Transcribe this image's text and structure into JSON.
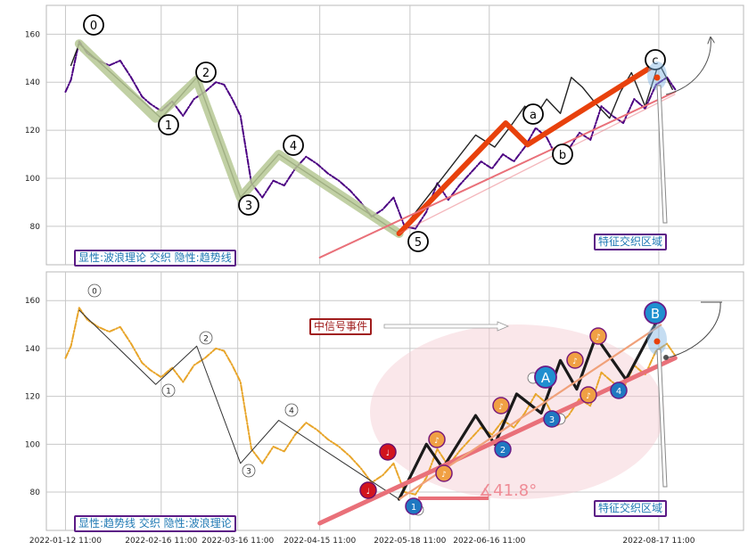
{
  "chart_data": [
    {
      "type": "line",
      "panel": "top",
      "ylim": [
        64,
        172
      ],
      "yticks": [
        80,
        100,
        120,
        140,
        160
      ],
      "grid": true,
      "series": [
        {
          "style": "dash-dot",
          "color": "#4b0082",
          "x": [
            "2022-01-12",
            "2022-01-14",
            "2022-01-17",
            "2022-01-20",
            "2022-01-24",
            "2022-01-28",
            "2022-02-01",
            "2022-02-05",
            "2022-02-09",
            "2022-02-12",
            "2022-02-16",
            "2022-02-20",
            "2022-02-24",
            "2022-02-28",
            "2022-03-04",
            "2022-03-08",
            "2022-03-11",
            "2022-03-14",
            "2022-03-17",
            "2022-03-21",
            "2022-03-25",
            "2022-03-29",
            "2022-04-02",
            "2022-04-06",
            "2022-04-10",
            "2022-04-14",
            "2022-04-18",
            "2022-04-22",
            "2022-04-26",
            "2022-04-30",
            "2022-05-04",
            "2022-05-08",
            "2022-05-12",
            "2022-05-16",
            "2022-05-20",
            "2022-05-24",
            "2022-05-28",
            "2022-06-01",
            "2022-06-05",
            "2022-06-09",
            "2022-06-13",
            "2022-06-17",
            "2022-06-21",
            "2022-06-25",
            "2022-06-29",
            "2022-07-03",
            "2022-07-07",
            "2022-07-11",
            "2022-07-15",
            "2022-07-19",
            "2022-07-23",
            "2022-07-27",
            "2022-07-31",
            "2022-08-04",
            "2022-08-08",
            "2022-08-12",
            "2022-08-16",
            "2022-08-20",
            "2022-08-23"
          ],
          "y": [
            136,
            141,
            157,
            152,
            149,
            147,
            149,
            142,
            134,
            131,
            128,
            132,
            126,
            133,
            136,
            140,
            139,
            133,
            126,
            98,
            92,
            99,
            97,
            104,
            109,
            106,
            102,
            99,
            95,
            90,
            84,
            87,
            92,
            80,
            79,
            86,
            98,
            91,
            97,
            102,
            107,
            104,
            110,
            107,
            113,
            121,
            117,
            108,
            112,
            119,
            116,
            130,
            126,
            123,
            133,
            129,
            139,
            142,
            137
          ]
        },
        {
          "style": "solid",
          "color": "#222222",
          "x": [
            "2022-01-14",
            "2022-01-17",
            "2022-02-16",
            "2022-03-01",
            "2022-03-17",
            "2022-03-31",
            "2022-05-14",
            "2022-06-11",
            "2022-06-18",
            "2022-06-24",
            "2022-06-29",
            "2022-07-03",
            "2022-07-07",
            "2022-07-12",
            "2022-07-16",
            "2022-07-20",
            "2022-07-25",
            "2022-07-30",
            "2022-08-03",
            "2022-08-07",
            "2022-08-12",
            "2022-08-17",
            "2022-08-22"
          ],
          "y": [
            147,
            156,
            125,
            142,
            92,
            110,
            77,
            118,
            113,
            122,
            130,
            126,
            133,
            127,
            142,
            138,
            131,
            125,
            136,
            144,
            130,
            148,
            137
          ]
        },
        {
          "style": "thick-band",
          "color": "#b6c894",
          "x": [
            "2022-01-17",
            "2022-02-14",
            "2022-03-01",
            "2022-03-17",
            "2022-03-31",
            "2022-05-14"
          ],
          "y": [
            156,
            125,
            141,
            92,
            110,
            77
          ]
        },
        {
          "style": "thick",
          "color": "#e8410c",
          "x": [
            "2022-05-14",
            "2022-06-22",
            "2022-06-30",
            "2022-08-18"
          ],
          "y": [
            77,
            123,
            114,
            149
          ]
        },
        {
          "style": "trendline",
          "color": "#e97079",
          "x": [
            "2022-04-15",
            "2022-08-23"
          ],
          "y": [
            67,
            136
          ]
        }
      ],
      "wave_labels": [
        "0",
        "1",
        "2",
        "3",
        "4",
        "5",
        "a",
        "b",
        "c"
      ],
      "box_label": "显性:波浪理论 交织 隐性:趋势线",
      "zone_label": "特征交织区域"
    },
    {
      "type": "line",
      "panel": "bottom",
      "ylim": [
        64,
        172
      ],
      "yticks": [
        80,
        100,
        120,
        140,
        160
      ],
      "xticks": [
        "2022-01-12 11:00",
        "2022-02-16 11:00",
        "2022-03-16 11:00",
        "2022-04-15 11:00",
        "2022-05-18 11:00",
        "2022-06-16 11:00",
        "2022-08-17 11:00"
      ],
      "grid": true,
      "series": [
        {
          "style": "dash-dot",
          "color": "#e8a52a",
          "x": [
            "2022-01-12",
            "2022-01-14",
            "2022-01-17",
            "2022-01-20",
            "2022-01-24",
            "2022-01-28",
            "2022-02-01",
            "2022-02-05",
            "2022-02-09",
            "2022-02-12",
            "2022-02-16",
            "2022-02-20",
            "2022-02-24",
            "2022-02-28",
            "2022-03-04",
            "2022-03-08",
            "2022-03-11",
            "2022-03-14",
            "2022-03-17",
            "2022-03-21",
            "2022-03-25",
            "2022-03-29",
            "2022-04-02",
            "2022-04-06",
            "2022-04-10",
            "2022-04-14",
            "2022-04-18",
            "2022-04-22",
            "2022-04-26",
            "2022-04-30",
            "2022-05-04",
            "2022-05-08",
            "2022-05-12",
            "2022-05-16",
            "2022-05-20",
            "2022-05-24",
            "2022-05-28",
            "2022-06-01",
            "2022-06-05",
            "2022-06-09",
            "2022-06-13",
            "2022-06-17",
            "2022-06-21",
            "2022-06-25",
            "2022-06-29",
            "2022-07-03",
            "2022-07-07",
            "2022-07-11",
            "2022-07-15",
            "2022-07-19",
            "2022-07-23",
            "2022-07-27",
            "2022-07-31",
            "2022-08-04",
            "2022-08-08",
            "2022-08-12",
            "2022-08-16",
            "2022-08-20",
            "2022-08-23"
          ],
          "y": [
            136,
            141,
            157,
            152,
            149,
            147,
            149,
            142,
            134,
            131,
            128,
            132,
            126,
            133,
            136,
            140,
            139,
            133,
            126,
            98,
            92,
            99,
            97,
            104,
            109,
            106,
            102,
            99,
            95,
            90,
            84,
            87,
            92,
            80,
            79,
            86,
            98,
            91,
            97,
            102,
            107,
            104,
            110,
            107,
            113,
            121,
            117,
            108,
            112,
            119,
            116,
            130,
            126,
            123,
            133,
            129,
            139,
            142,
            137
          ]
        },
        {
          "style": "thin",
          "color": "#333333",
          "x": [
            "2022-01-17",
            "2022-02-14",
            "2022-03-01",
            "2022-03-17",
            "2022-03-31",
            "2022-05-14"
          ],
          "y": [
            156,
            125,
            141,
            92,
            110,
            77
          ]
        },
        {
          "style": "thick",
          "color": "#1a1a1a",
          "x": [
            "2022-05-14",
            "2022-05-24",
            "2022-05-30",
            "2022-06-11",
            "2022-06-18",
            "2022-06-26",
            "2022-07-05",
            "2022-07-12",
            "2022-07-18",
            "2022-07-25",
            "2022-08-05",
            "2022-08-18"
          ],
          "y": [
            77,
            100,
            90,
            112,
            100,
            121,
            113,
            135,
            123,
            145,
            127,
            155
          ]
        },
        {
          "style": "trendline",
          "color": "#e97079",
          "x": [
            "2022-04-15",
            "2022-08-23"
          ],
          "y": [
            67,
            136
          ]
        }
      ],
      "wave_labels": [
        "0",
        "1",
        "2",
        "3",
        "4",
        "A",
        "B"
      ],
      "angle_label": "∡41.8°",
      "event_label": "中信号事件",
      "box_label": "显性:趋势线 交织 隐性:波浪理论",
      "zone_label": "特征交织区域"
    }
  ]
}
